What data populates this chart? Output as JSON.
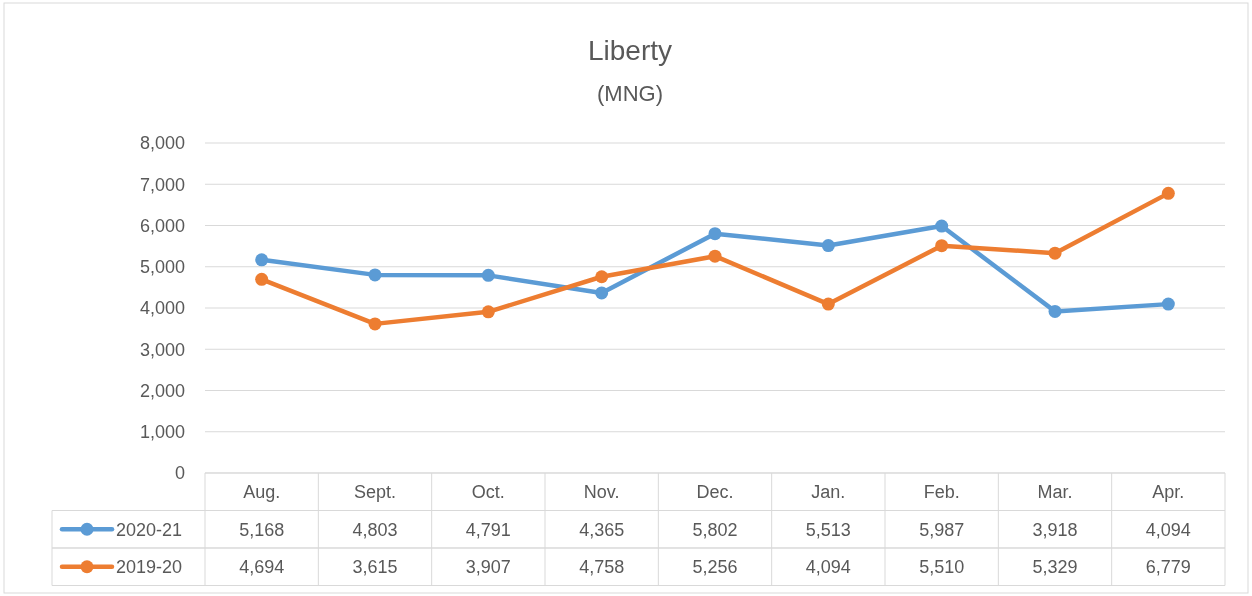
{
  "chart_data": {
    "type": "line",
    "title": "Liberty",
    "subtitle": "(MNG)",
    "categories": [
      "Aug.",
      "Sept.",
      "Oct.",
      "Nov.",
      "Dec.",
      "Jan.",
      "Feb.",
      "Mar.",
      "Apr."
    ],
    "series": [
      {
        "name": "2020-21",
        "color": "#5b9bd5",
        "values": [
          5168,
          4803,
          4791,
          4365,
          5802,
          5513,
          5987,
          3918,
          4094
        ],
        "value_labels": [
          "5,168",
          "4,803",
          "4,791",
          "4,365",
          "5,802",
          "5,513",
          "5,987",
          "3,918",
          "4,094"
        ]
      },
      {
        "name": "2019-20",
        "color": "#ed7d31",
        "values": [
          4694,
          3615,
          3907,
          4758,
          5256,
          4094,
          5510,
          5329,
          6779
        ],
        "value_labels": [
          "4,694",
          "3,615",
          "3,907",
          "4,758",
          "5,256",
          "4,094",
          "5,510",
          "5,329",
          "6,779"
        ]
      }
    ],
    "ylim": [
      0,
      8000
    ],
    "yticks": [
      {
        "value": 0,
        "label": "0"
      },
      {
        "value": 1000,
        "label": "1,000"
      },
      {
        "value": 2000,
        "label": "2,000"
      },
      {
        "value": 3000,
        "label": "3,000"
      },
      {
        "value": 4000,
        "label": "4,000"
      },
      {
        "value": 5000,
        "label": "5,000"
      },
      {
        "value": 6000,
        "label": "6,000"
      },
      {
        "value": 7000,
        "label": "7,000"
      },
      {
        "value": 8000,
        "label": "8,000"
      }
    ],
    "grid": "y",
    "legend": "bottom",
    "marker": "circle",
    "line_style": "solid"
  }
}
